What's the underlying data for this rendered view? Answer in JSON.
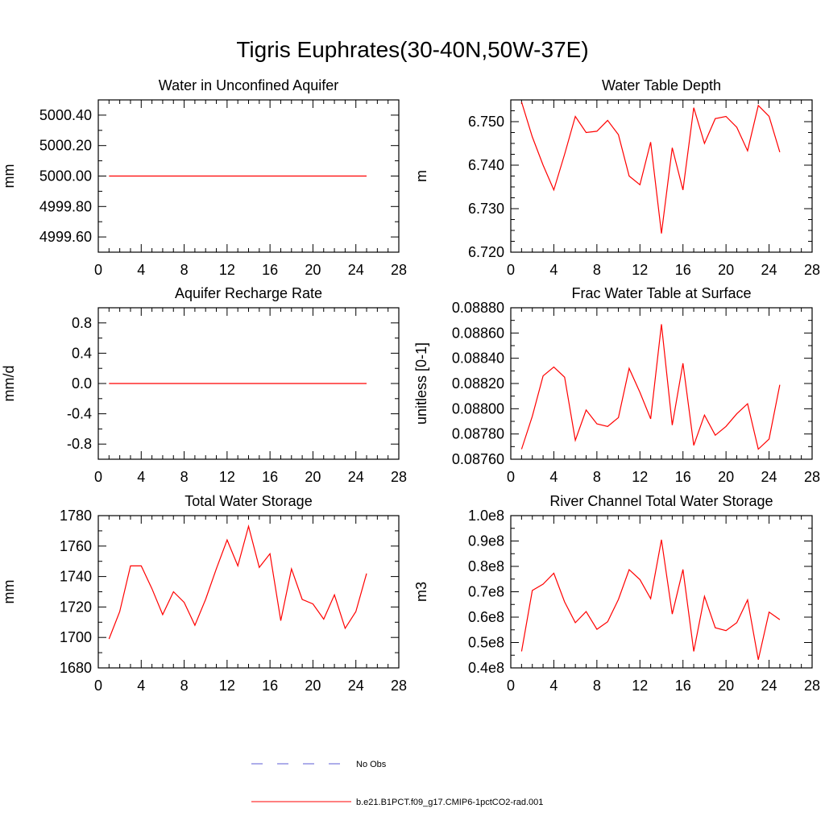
{
  "title": "Tigris Euphrates(30-40N,50W-37E)",
  "legend": [
    {
      "label": "No Obs",
      "color": "#5b5bd6",
      "dash": true
    },
    {
      "label": "b.e21.B1PCT.f09_g17.CMIP6-1pctCO2-rad.001",
      "color": "#ff0000",
      "dash": false
    }
  ],
  "chart_data": [
    {
      "type": "line",
      "title": "Water in Unconfined Aquifer",
      "ylabel": "mm",
      "xlim": [
        0,
        28
      ],
      "xticks": [
        0,
        4,
        8,
        12,
        16,
        20,
        24,
        28
      ],
      "ylim": [
        4999.5,
        5000.5
      ],
      "yticks": [
        4999.6,
        4999.8,
        5000.0,
        5000.2,
        5000.4
      ],
      "yticklabels": [
        "4999.60",
        "4999.80",
        "5000.00",
        "5000.20",
        "5000.40"
      ],
      "yminor": 0.1,
      "series": [
        {
          "color": "#ff0000",
          "x": [
            1,
            2,
            3,
            4,
            5,
            6,
            7,
            8,
            9,
            10,
            11,
            12,
            13,
            14,
            15,
            16,
            17,
            18,
            19,
            20,
            21,
            22,
            23,
            24,
            25
          ],
          "values": [
            5000,
            5000,
            5000,
            5000,
            5000,
            5000,
            5000,
            5000,
            5000,
            5000,
            5000,
            5000,
            5000,
            5000,
            5000,
            5000,
            5000,
            5000,
            5000,
            5000,
            5000,
            5000,
            5000,
            5000,
            5000
          ]
        }
      ]
    },
    {
      "type": "line",
      "title": "Water Table Depth",
      "ylabel": "m",
      "xlim": [
        0,
        28
      ],
      "xticks": [
        0,
        4,
        8,
        12,
        16,
        20,
        24,
        28
      ],
      "ylim": [
        6.72,
        6.755
      ],
      "yticks": [
        6.72,
        6.73,
        6.74,
        6.75
      ],
      "yticklabels": [
        "6.720",
        "6.730",
        "6.740",
        "6.750"
      ],
      "yminor": 0.0025,
      "series": [
        {
          "color": "#ff0000",
          "x": [
            1,
            2,
            3,
            4,
            5,
            6,
            7,
            8,
            9,
            10,
            11,
            12,
            13,
            14,
            15,
            16,
            17,
            18,
            19,
            20,
            21,
            22,
            23,
            24,
            25
          ],
          "values": [
            6.7545,
            6.7465,
            6.74,
            6.7343,
            6.7425,
            6.7512,
            6.7475,
            6.7478,
            6.7503,
            6.747,
            6.7375,
            6.7355,
            6.7453,
            6.7243,
            6.744,
            6.7343,
            6.7532,
            6.745,
            6.7507,
            6.7512,
            6.7487,
            6.7433,
            6.7537,
            6.7512,
            6.743
          ]
        }
      ]
    },
    {
      "type": "line",
      "title": "Aquifer Recharge Rate",
      "ylabel": "mm/d",
      "xlim": [
        0,
        28
      ],
      "xticks": [
        0,
        4,
        8,
        12,
        16,
        20,
        24,
        28
      ],
      "ylim": [
        -1.0,
        1.0
      ],
      "yticks": [
        -0.8,
        -0.4,
        0.0,
        0.4,
        0.8
      ],
      "yticklabels": [
        "-0.8",
        "-0.4",
        "0.0",
        "0.4",
        "0.8"
      ],
      "yminor": 0.2,
      "series": [
        {
          "color": "#ff0000",
          "x": [
            1,
            2,
            3,
            4,
            5,
            6,
            7,
            8,
            9,
            10,
            11,
            12,
            13,
            14,
            15,
            16,
            17,
            18,
            19,
            20,
            21,
            22,
            23,
            24,
            25
          ],
          "values": [
            0,
            0,
            0,
            0,
            0,
            0,
            0,
            0,
            0,
            0,
            0,
            0,
            0,
            0,
            0,
            0,
            0,
            0,
            0,
            0,
            0,
            0,
            0,
            0,
            0
          ]
        }
      ]
    },
    {
      "type": "line",
      "title": "Frac Water Table at Surface",
      "ylabel": "unitless [0-1]",
      "xlim": [
        0,
        28
      ],
      "xticks": [
        0,
        4,
        8,
        12,
        16,
        20,
        24,
        28
      ],
      "ylim": [
        0.0876,
        0.0888
      ],
      "yticks": [
        0.0876,
        0.0878,
        0.088,
        0.0882,
        0.0884,
        0.0886,
        0.0888
      ],
      "yticklabels": [
        "0.08760",
        "0.08780",
        "0.08800",
        "0.08820",
        "0.08840",
        "0.08860",
        "0.08880"
      ],
      "yminor": 0.0001,
      "series": [
        {
          "color": "#ff0000",
          "x": [
            1,
            2,
            3,
            4,
            5,
            6,
            7,
            8,
            9,
            10,
            11,
            12,
            13,
            14,
            15,
            16,
            17,
            18,
            19,
            20,
            21,
            22,
            23,
            24,
            25
          ],
          "values": [
            0.08768,
            0.08794,
            0.08826,
            0.08833,
            0.08825,
            0.08775,
            0.08799,
            0.08788,
            0.08786,
            0.08793,
            0.08832,
            0.08813,
            0.08792,
            0.08867,
            0.08787,
            0.08836,
            0.08771,
            0.08795,
            0.08779,
            0.08786,
            0.08796,
            0.08804,
            0.08768,
            0.08776,
            0.08819
          ]
        }
      ]
    },
    {
      "type": "line",
      "title": "Total Water Storage",
      "ylabel": "mm",
      "xlim": [
        0,
        28
      ],
      "xticks": [
        0,
        4,
        8,
        12,
        16,
        20,
        24,
        28
      ],
      "ylim": [
        1680,
        1780
      ],
      "yticks": [
        1680,
        1700,
        1720,
        1740,
        1760,
        1780
      ],
      "yticklabels": [
        "1680",
        "1700",
        "1720",
        "1740",
        "1760",
        "1780"
      ],
      "yminor": 10,
      "series": [
        {
          "color": "#ff0000",
          "x": [
            1,
            2,
            3,
            4,
            5,
            6,
            7,
            8,
            9,
            10,
            11,
            12,
            13,
            14,
            15,
            16,
            17,
            18,
            19,
            20,
            21,
            22,
            23,
            24,
            25
          ],
          "values": [
            1699,
            1717,
            1747,
            1747,
            1732,
            1715,
            1730,
            1723,
            1708,
            1725,
            1745,
            1764,
            1747,
            1773,
            1746,
            1755,
            1711,
            1745,
            1725,
            1722,
            1712,
            1728,
            1706,
            1717,
            1742
          ]
        }
      ]
    },
    {
      "type": "line",
      "title": "River Channel Total Water Storage",
      "ylabel": "m3",
      "xlim": [
        0,
        28
      ],
      "xticks": [
        0,
        4,
        8,
        12,
        16,
        20,
        24,
        28
      ],
      "ylim": [
        0.4,
        1.0
      ],
      "yticks": [
        0.4,
        0.5,
        0.6,
        0.7,
        0.8,
        0.9,
        1.0
      ],
      "yticklabels": [
        "0.4e8",
        "0.5e8",
        "0.6e8",
        "0.7e8",
        "0.8e8",
        "0.9e8",
        "1.0e8"
      ],
      "yminor": 0.05,
      "series": [
        {
          "color": "#ff0000",
          "x": [
            1,
            2,
            3,
            4,
            5,
            6,
            7,
            8,
            9,
            10,
            11,
            12,
            13,
            14,
            15,
            16,
            17,
            18,
            19,
            20,
            21,
            22,
            23,
            24,
            25
          ],
          "values": [
            0.465,
            0.705,
            0.73,
            0.773,
            0.66,
            0.578,
            0.622,
            0.552,
            0.582,
            0.67,
            0.787,
            0.748,
            0.673,
            0.905,
            0.612,
            0.788,
            0.465,
            0.682,
            0.558,
            0.547,
            0.578,
            0.668,
            0.432,
            0.62,
            0.59
          ]
        }
      ]
    }
  ]
}
